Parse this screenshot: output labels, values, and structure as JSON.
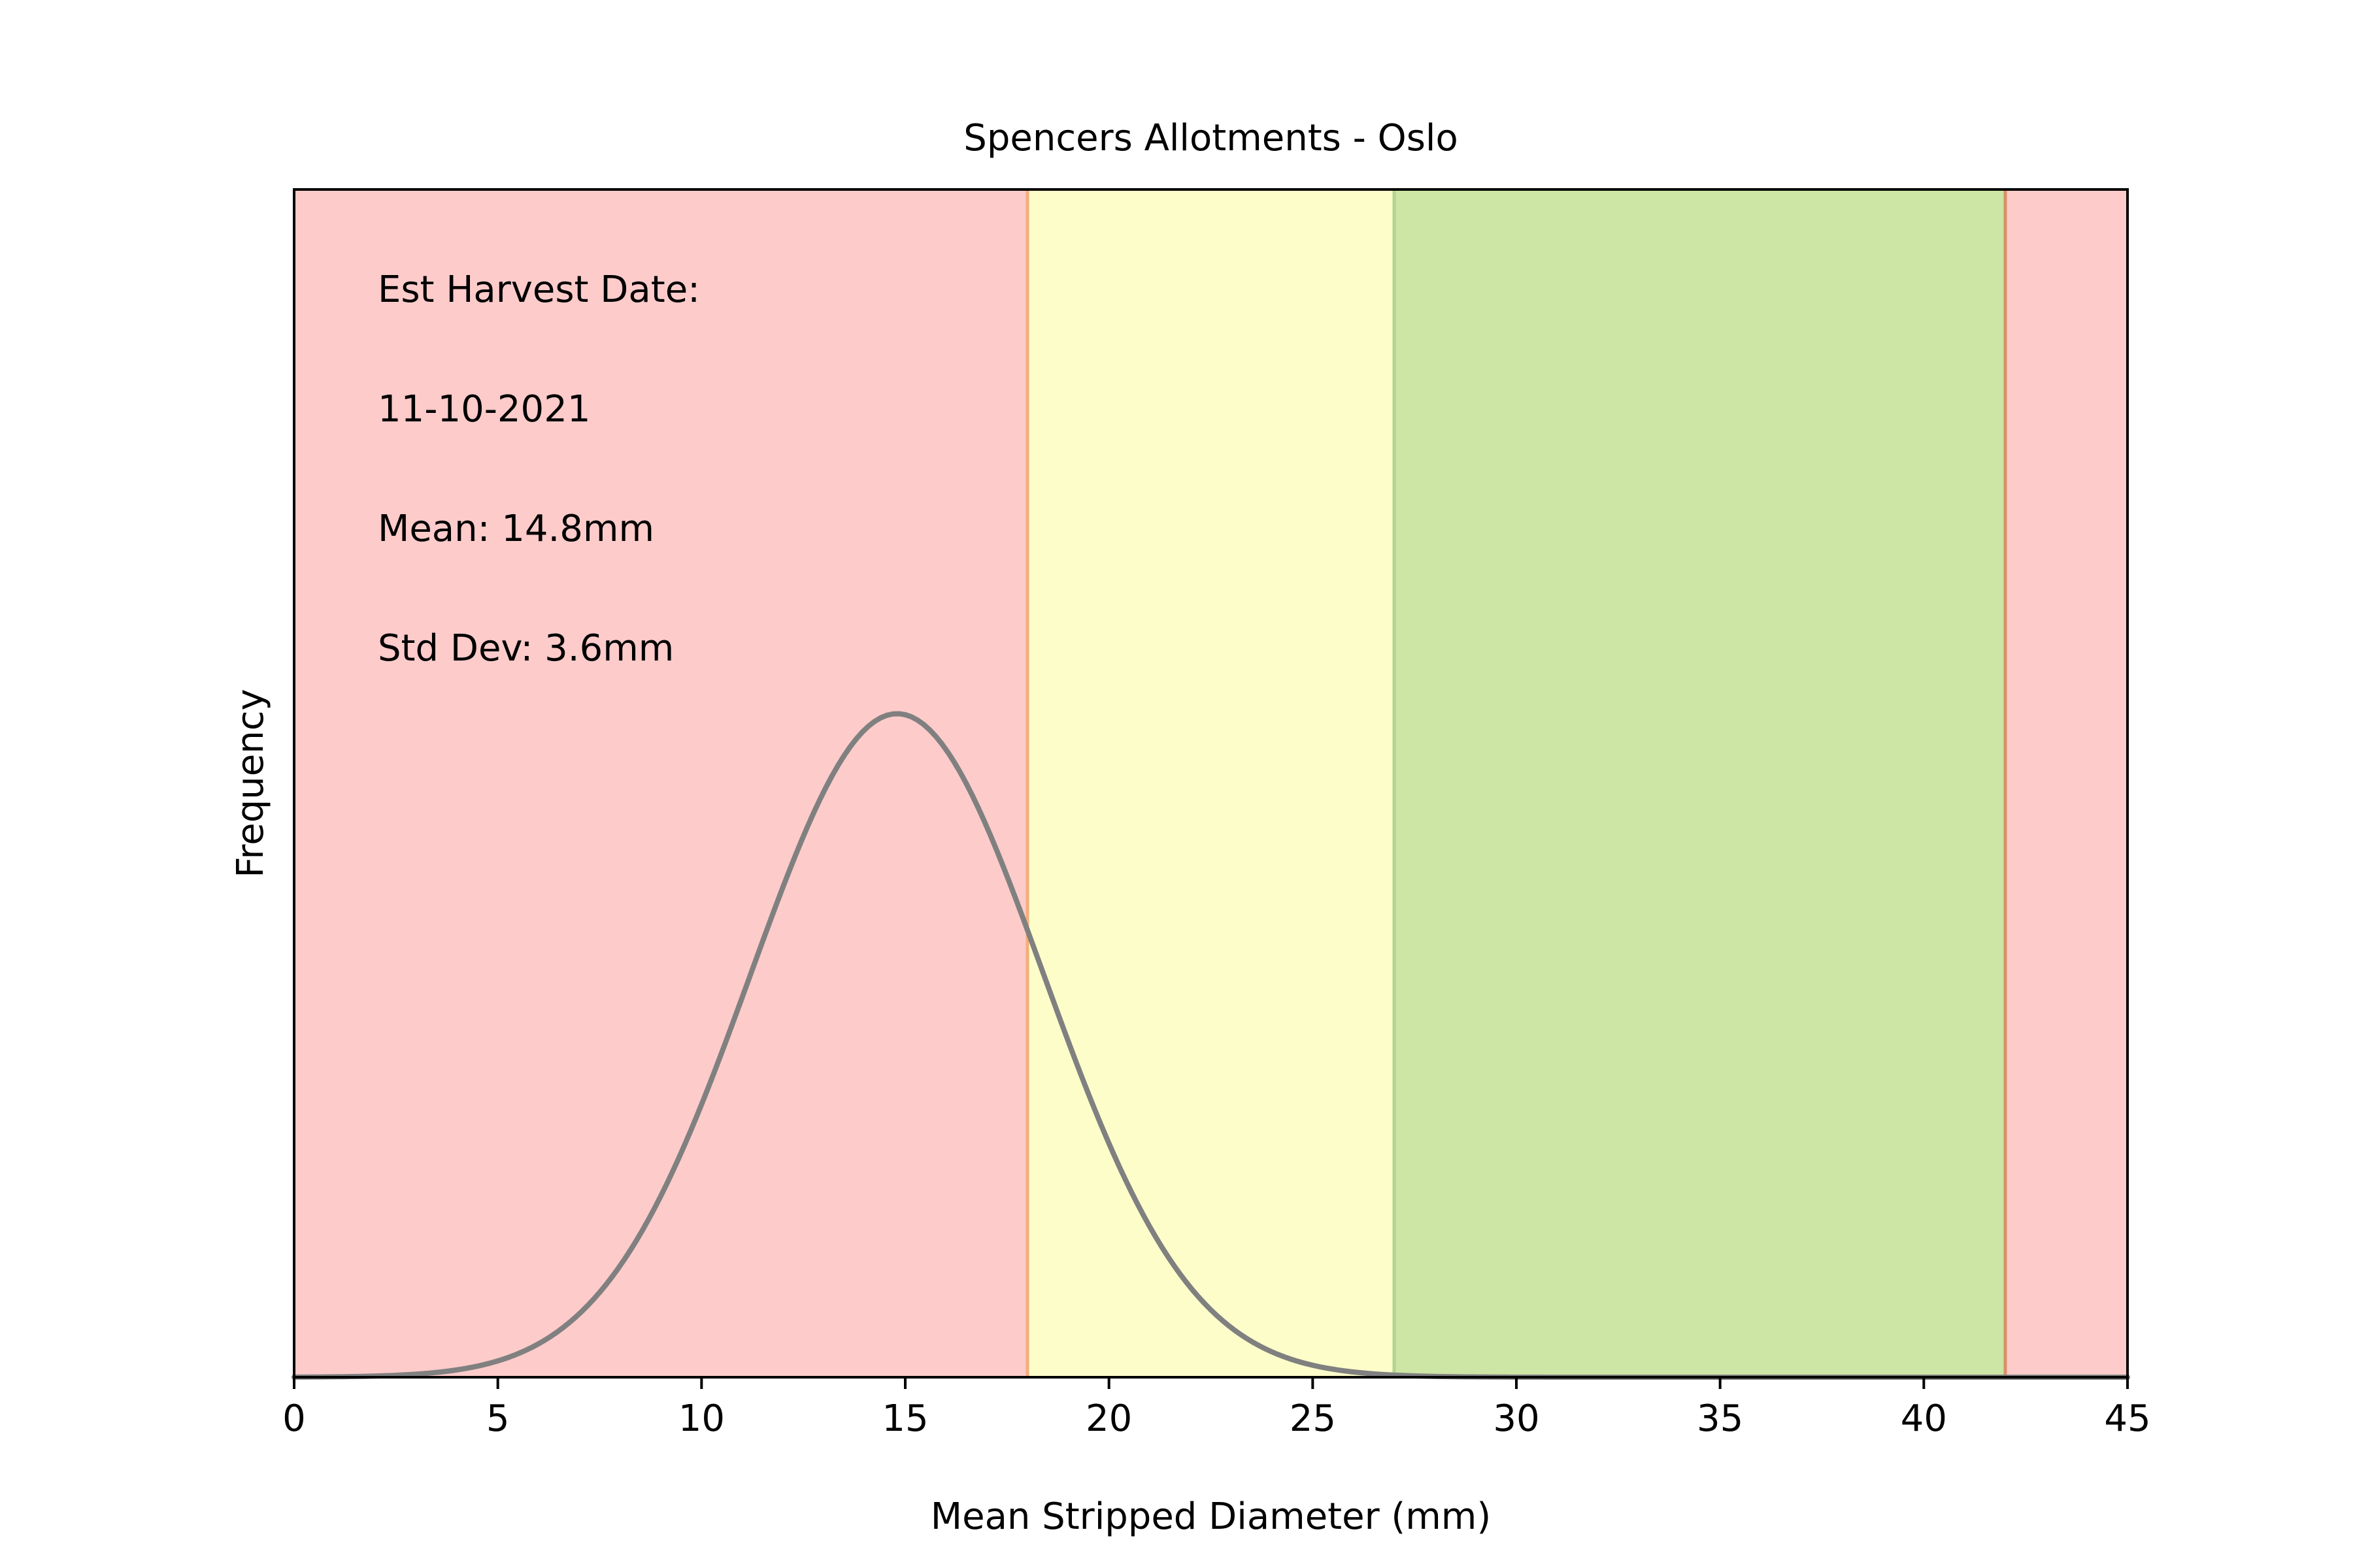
{
  "chart_data": {
    "type": "line",
    "title": "Spencers Allotments - Oslo",
    "xlabel": "Mean Stripped Diameter (mm)",
    "ylabel": "Frequency",
    "xlim": [
      0,
      45
    ],
    "ylim": [
      0,
      1.79
    ],
    "xticks": [
      0,
      5,
      10,
      15,
      20,
      25,
      30,
      35,
      40,
      45
    ],
    "yticks_visible": false,
    "grid": false,
    "annotations": [
      "Est Harvest Date:",
      "11-10-2021",
      "Mean: 14.8mm",
      "Std Dev: 3.6mm"
    ],
    "bands": [
      {
        "from": 0,
        "to": 18,
        "color": "#fccbca"
      },
      {
        "from": 18,
        "to": 27,
        "color": "#fdfdca"
      },
      {
        "from": 27,
        "to": 42,
        "color": "#cde5a5"
      },
      {
        "from": 42,
        "to": 45,
        "color": "#fccbca"
      }
    ],
    "band_edges": [
      {
        "x": 18,
        "color": "#f5ae7a"
      },
      {
        "x": 27,
        "color": "#b2d493"
      },
      {
        "x": 42,
        "color": "#d99066"
      }
    ],
    "series": [
      {
        "distribution": "normal",
        "mean": 14.8,
        "std": 3.6,
        "x_range": [
          0,
          45
        ],
        "peak": 1.0,
        "color": "#808080"
      }
    ]
  }
}
